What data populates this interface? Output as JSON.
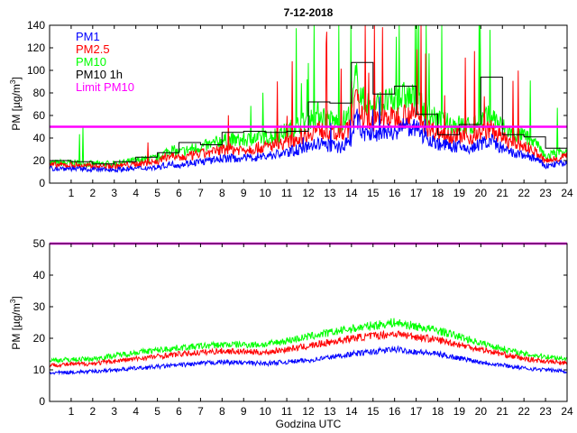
{
  "chart_data": [
    {
      "type": "line",
      "title": "7-12-2018",
      "ylabel": "PM [µg/m³]",
      "ylabel_main": "PM [µg/m",
      "ylabel_sup": "3",
      "ylabel_close": "]",
      "xlim": [
        0,
        24
      ],
      "ylim": [
        0,
        140
      ],
      "x_ticks": [
        "1",
        "2",
        "3",
        "4",
        "5",
        "6",
        "7",
        "8",
        "9",
        "10",
        "11",
        "12",
        "13",
        "14",
        "15",
        "16",
        "17",
        "18",
        "19",
        "20",
        "21",
        "22",
        "23",
        "24"
      ],
      "y_ticks": [
        "0",
        "20",
        "40",
        "60",
        "80",
        "100",
        "120",
        "140"
      ],
      "series": [
        {
          "name": "PM1",
          "color": "#0000ff",
          "points": [
            [
              0,
              13
            ],
            [
              1,
              13
            ],
            [
              2,
              12
            ],
            [
              3,
              12
            ],
            [
              4,
              13
            ],
            [
              5,
              14
            ],
            [
              5.6,
              17
            ],
            [
              6,
              16
            ],
            [
              6.5,
              18
            ],
            [
              7,
              19
            ],
            [
              7.5,
              20
            ],
            [
              8,
              22
            ],
            [
              9,
              22
            ],
            [
              10,
              24
            ],
            [
              11,
              27
            ],
            [
              11.5,
              30
            ],
            [
              12,
              32
            ],
            [
              12.5,
              35
            ],
            [
              13,
              33
            ],
            [
              13.5,
              32
            ],
            [
              14,
              38
            ],
            [
              14.2,
              60
            ],
            [
              14.5,
              45
            ],
            [
              15,
              42
            ],
            [
              15.5,
              45
            ],
            [
              16,
              46
            ],
            [
              16.5,
              50
            ],
            [
              17,
              48
            ],
            [
              17.5,
              40
            ],
            [
              18,
              35
            ],
            [
              18.5,
              33
            ],
            [
              19,
              32
            ],
            [
              19.5,
              30
            ],
            [
              20,
              35
            ],
            [
              20.5,
              38
            ],
            [
              21,
              30
            ],
            [
              21.5,
              26
            ],
            [
              22,
              25
            ],
            [
              22.5,
              22
            ],
            [
              23,
              15
            ],
            [
              23.5,
              17
            ],
            [
              24,
              18
            ]
          ]
        },
        {
          "name": "PM2.5",
          "color": "#ff0000",
          "points": [
            [
              0,
              16
            ],
            [
              1,
              16
            ],
            [
              2,
              15
            ],
            [
              3,
              15
            ],
            [
              4,
              17
            ],
            [
              5,
              19
            ],
            [
              5.6,
              25
            ],
            [
              6,
              22
            ],
            [
              6.5,
              24
            ],
            [
              7,
              26
            ],
            [
              7.5,
              27
            ],
            [
              8,
              30
            ],
            [
              9,
              30
            ],
            [
              10,
              32
            ],
            [
              11,
              36
            ],
            [
              11.5,
              40
            ],
            [
              12,
              44
            ],
            [
              12.5,
              48
            ],
            [
              13,
              44
            ],
            [
              13.5,
              42
            ],
            [
              14,
              50
            ],
            [
              14.2,
              75
            ],
            [
              14.5,
              58
            ],
            [
              15,
              54
            ],
            [
              15.5,
              58
            ],
            [
              16,
              58
            ],
            [
              16.5,
              62
            ],
            [
              17,
              60
            ],
            [
              17.5,
              50
            ],
            [
              18,
              45
            ],
            [
              18.5,
              43
            ],
            [
              19,
              42
            ],
            [
              19.5,
              40
            ],
            [
              20,
              45
            ],
            [
              20.5,
              48
            ],
            [
              21,
              40
            ],
            [
              21.5,
              35
            ],
            [
              22,
              33
            ],
            [
              22.5,
              28
            ],
            [
              23,
              19
            ],
            [
              23.5,
              22
            ],
            [
              24,
              24
            ]
          ]
        },
        {
          "name": "PM10",
          "color": "#00ff00",
          "points": [
            [
              0,
              18
            ],
            [
              1,
              18
            ],
            [
              2,
              17
            ],
            [
              3,
              17
            ],
            [
              4,
              20
            ],
            [
              5,
              22
            ],
            [
              5.6,
              30
            ],
            [
              6,
              27
            ],
            [
              6.5,
              30
            ],
            [
              7,
              32
            ],
            [
              7.5,
              34
            ],
            [
              8,
              38
            ],
            [
              9,
              38
            ],
            [
              10,
              40
            ],
            [
              11,
              46
            ],
            [
              11.5,
              52
            ],
            [
              12,
              56
            ],
            [
              12.5,
              62
            ],
            [
              13,
              56
            ],
            [
              13.5,
              53
            ],
            [
              14,
              62
            ],
            [
              14.2,
              95
            ],
            [
              14.5,
              74
            ],
            [
              15,
              68
            ],
            [
              15.5,
              72
            ],
            [
              16,
              72
            ],
            [
              16.5,
              78
            ],
            [
              17,
              74
            ],
            [
              17.5,
              62
            ],
            [
              18,
              56
            ],
            [
              18.5,
              53
            ],
            [
              19,
              52
            ],
            [
              19.5,
              50
            ],
            [
              20,
              56
            ],
            [
              20.5,
              60
            ],
            [
              21,
              50
            ],
            [
              21.5,
              44
            ],
            [
              22,
              42
            ],
            [
              22.5,
              36
            ],
            [
              23,
              23
            ],
            [
              23.5,
              27
            ],
            [
              24,
              30
            ]
          ]
        },
        {
          "name": "PM10 1h",
          "color": "#000000",
          "step": true,
          "values": [
            20,
            19,
            17,
            19,
            23,
            27,
            36,
            34,
            45,
            46,
            45,
            46,
            72,
            71,
            107,
            79,
            86,
            61,
            43,
            52,
            94,
            43,
            41,
            31
          ]
        },
        {
          "name": "Limit PM10",
          "color": "#ff00ff",
          "points": [
            [
              0,
              50
            ],
            [
              24,
              50
            ]
          ]
        }
      ]
    },
    {
      "type": "line",
      "title": "",
      "xlabel": "Godzina UTC",
      "ylabel": "PM [µg/m³]",
      "ylabel_main": "PM [µg/m",
      "ylabel_sup": "3",
      "ylabel_close": "]",
      "xlim": [
        0,
        24
      ],
      "ylim": [
        0,
        50
      ],
      "x_ticks": [
        "1",
        "2",
        "3",
        "4",
        "5",
        "6",
        "7",
        "8",
        "9",
        "10",
        "11",
        "12",
        "13",
        "14",
        "15",
        "16",
        "17",
        "18",
        "19",
        "20",
        "21",
        "22",
        "23",
        "24"
      ],
      "y_ticks": [
        "0",
        "10",
        "20",
        "30",
        "40",
        "50"
      ],
      "series": [
        {
          "name": "PM1",
          "color": "#0000ff",
          "points": [
            [
              0,
              9
            ],
            [
              2,
              9.5
            ],
            [
              4,
              10.5
            ],
            [
              6,
              11.5
            ],
            [
              8,
              12.5
            ],
            [
              10,
              12
            ],
            [
              12,
              13
            ],
            [
              14,
              15
            ],
            [
              16,
              16.5
            ],
            [
              18,
              15
            ],
            [
              20,
              12.5
            ],
            [
              22,
              10.5
            ],
            [
              24,
              9.5
            ]
          ]
        },
        {
          "name": "PM2.5",
          "color": "#ff0000",
          "points": [
            [
              0,
              11.5
            ],
            [
              2,
              12
            ],
            [
              4,
              13.5
            ],
            [
              6,
              15
            ],
            [
              8,
              16
            ],
            [
              10,
              15.5
            ],
            [
              12,
              17.5
            ],
            [
              14,
              20
            ],
            [
              16,
              21.5
            ],
            [
              18,
              19.5
            ],
            [
              20,
              16.5
            ],
            [
              22,
              13.5
            ],
            [
              24,
              12
            ]
          ]
        },
        {
          "name": "PM10",
          "color": "#00ff00",
          "points": [
            [
              0,
              13
            ],
            [
              2,
              13.5
            ],
            [
              4,
              15.5
            ],
            [
              6,
              17
            ],
            [
              8,
              18
            ],
            [
              10,
              18
            ],
            [
              12,
              20.5
            ],
            [
              14,
              23
            ],
            [
              16,
              25
            ],
            [
              18,
              22.5
            ],
            [
              20,
              18.5
            ],
            [
              22,
              15
            ],
            [
              24,
              13.5
            ]
          ]
        },
        {
          "name": "Limit PM10",
          "color": "#ff00ff",
          "points": [
            [
              0,
              50
            ],
            [
              24,
              50
            ]
          ]
        }
      ]
    }
  ]
}
